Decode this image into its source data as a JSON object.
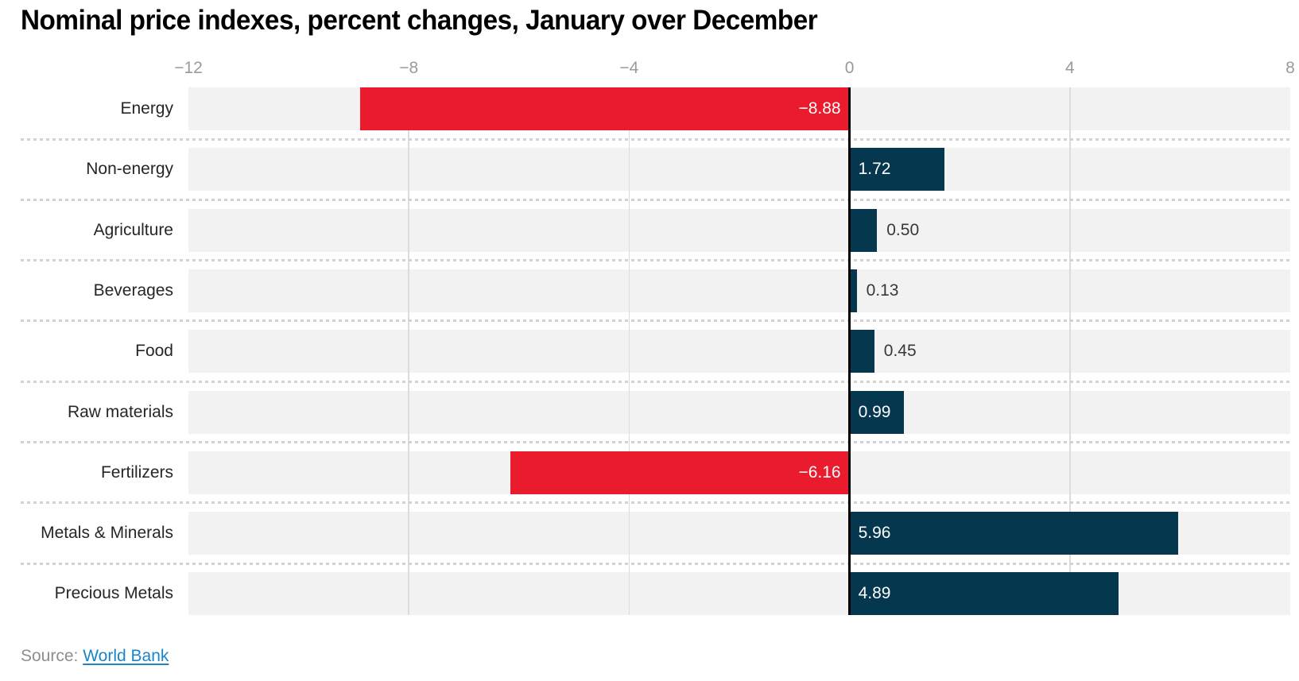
{
  "title": "Nominal price indexes, percent changes, January over December",
  "source": {
    "prefix": "Source:",
    "link_label": "World Bank"
  },
  "colors": {
    "positive_bar": "#05374f",
    "negative_bar": "#ea1b2d",
    "row_stripe": "#f2f2f2",
    "gridline": "#dcdcdc",
    "zero_line": "#000000",
    "axis_tick_label": "#9a9a9a",
    "category_label": "#262626",
    "value_label_inside": "#ffffff",
    "value_label_outside": "#383838",
    "row_separator": "#d2d2d2",
    "source_text": "#8e8e8e",
    "source_link": "#1a85c8",
    "background": "#ffffff"
  },
  "chart_data": {
    "type": "bar",
    "orientation": "horizontal",
    "title": "Nominal price indexes, percent changes, January over December",
    "categories": [
      "Energy",
      "Non-energy",
      "Agriculture",
      "Beverages",
      "Food",
      "Raw materials",
      "Fertilizers",
      "Metals & Minerals",
      "Precious Metals"
    ],
    "values": [
      -8.88,
      1.72,
      0.5,
      0.13,
      0.45,
      0.99,
      -6.16,
      5.96,
      4.89
    ],
    "value_labels": [
      "−8.88",
      "1.72",
      "0.50",
      "0.13",
      "0.45",
      "0.99",
      "−6.16",
      "5.96",
      "4.89"
    ],
    "xlabel": "",
    "ylabel": "",
    "xlim": [
      -12,
      8
    ],
    "xticks": [
      -12,
      -8,
      -4,
      0,
      4,
      8
    ],
    "xtick_labels": [
      "−12",
      "−8",
      "−4",
      "0",
      "4",
      "8"
    ],
    "grid_ticks": [
      -8,
      -4,
      4
    ],
    "grid": "vertical-light-gray, dotted horizontal row separators, black zero line",
    "legend": "none",
    "bar_color_rule": "negative values red, positive values dark navy",
    "source_text": "Source: World Bank"
  }
}
